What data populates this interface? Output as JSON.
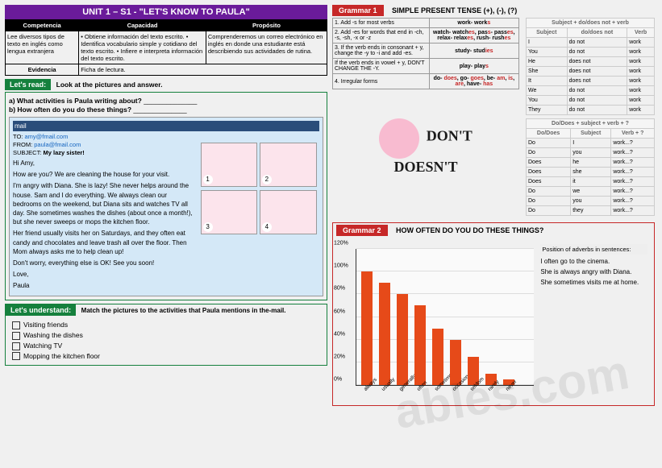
{
  "unit_header": "UNIT 1 – S1 - \"LET'S KNOW TO PAULA\"",
  "comp_headers": [
    "Competencia",
    "Capacidad",
    "Propósito"
  ],
  "comp_row": [
    "Lee diversos tipos de texto en inglés como lengua extranjera",
    "• Obtiene información del texto escrito.\n• Identifica vocabulario simple y cotidiano del texto escrito.\n• Infiere e interpreta información del texto escrito.",
    "Comprenderemos un correo electrónico en inglés en donde una estudiante está describiendo sus actividades de rutina."
  ],
  "evidencia_label": "Evidencia",
  "evidencia_value": "Ficha de lectura.",
  "lets_read": "Let's read:",
  "read_instr": "Look at the pictures and answer.",
  "q_a": "a)   What activities is Paula writing about?",
  "q_b": "b)   How often do you do these things?",
  "email": {
    "toolbar": "mail",
    "to_label": "TO:",
    "to": "amy@fmail.com",
    "from_label": "FROM:",
    "from": "paula@fmail.com",
    "subject_label": "SUBJECT:",
    "subject": "My lazy sister!",
    "greeting": "Hi Amy,",
    "p1": "How are you? We are cleaning the house for your visit.",
    "p2": "I'm angry with Diana. She is lazy! She never helps around the house. Sam and I do everything. We always clean our bedrooms on the weekend, but Diana sits and watches TV all day. She sometimes washes the dishes (about once a month!), but she never sweeps or mops the kitchen floor.",
    "p3": "Her friend usually visits her on Saturdays, and they often eat candy and chocolates and leave trash all over the floor. Then Mom always asks me to help clean up!",
    "p4": "Don't worry, everything else is OK! See you soon!",
    "closing": "Love,",
    "sign": "Paula"
  },
  "pics": [
    "1",
    "2",
    "3",
    "4"
  ],
  "understand_label": "Let's understand:",
  "understand_instr": "Match the pictures to the activities that Paula mentions in the-mail.",
  "checklist": [
    "Visiting friends",
    "Washing the dishes",
    "Watching TV",
    "Mopping the kitchen floor"
  ],
  "grammar1_label": "Grammar 1",
  "grammar1_title": "SIMPLE PRESENT TENSE (+), (-), (?)",
  "rules": [
    {
      "rule": "1. Add -s for most verbs",
      "ex": "work- works"
    },
    {
      "rule": "2. Add -es for words that end in -ch, -s, -sh, -x or -z",
      "ex": "watch- watches, pass- passes, relax- relaxes, rush- rushes"
    },
    {
      "rule": "3. If the verb ends in consonant + y, change the -y to -i and add -es.",
      "ex": "study- studies"
    },
    {
      "rule": "If the verb ends in vowel + y, DON'T CHANGE THE -Y.",
      "ex": "play- plays"
    },
    {
      "rule": "4. Irregular forms",
      "ex": "do- does, go- goes, be- am, is, are, have- has"
    }
  ],
  "neg_header": "Subject + do/does not + verb",
  "neg_cols": [
    "Subject",
    "do/does not",
    "Verb"
  ],
  "neg_rows": [
    [
      "I",
      "do not",
      "work"
    ],
    [
      "You",
      "do not",
      "work"
    ],
    [
      "He",
      "does not",
      "work"
    ],
    [
      "She",
      "does not",
      "work"
    ],
    [
      "It",
      "does not",
      "work"
    ],
    [
      "We",
      "do not",
      "work"
    ],
    [
      "You",
      "do not",
      "work"
    ],
    [
      "They",
      "do not",
      "work"
    ]
  ],
  "q_header": "Do/Does + subject + verb + ?",
  "q_cols": [
    "Do/Does",
    "Subject",
    "Verb + ?"
  ],
  "q_rows": [
    [
      "Do",
      "I",
      "work...?"
    ],
    [
      "Do",
      "you",
      "work...?"
    ],
    [
      "Does",
      "he",
      "work...?"
    ],
    [
      "Does",
      "she",
      "work...?"
    ],
    [
      "Does",
      "it",
      "work...?"
    ],
    [
      "Do",
      "we",
      "work...?"
    ],
    [
      "Do",
      "you",
      "work...?"
    ],
    [
      "Do",
      "they",
      "work...?"
    ]
  ],
  "dont_text1": "DON'T",
  "dont_text2": "DOESN'T",
  "grammar2_label": "Grammar 2",
  "grammar2_title": "HOW OFTEN DO YOU DO THESE THINGS?",
  "chart": {
    "ylim": [
      0,
      120
    ],
    "ytick_step": 20,
    "bar_color": "#e64a19",
    "background": "#fafafa",
    "grid_color": "#ddd",
    "categories": [
      "always",
      "usually",
      "generally",
      "often",
      "sometimes",
      "occasionally",
      "seldom",
      "rarely",
      "never"
    ],
    "values": [
      100,
      90,
      80,
      70,
      50,
      40,
      25,
      10,
      5
    ]
  },
  "adverb_header": "Position of adverbs in sentences:",
  "adverb_ex1": "I often go to the cinema.",
  "adverb_ex2": "She is always angry with Diana.",
  "adverb_ex3": "She sometimes visits me at home.",
  "watermark": "ables.com"
}
